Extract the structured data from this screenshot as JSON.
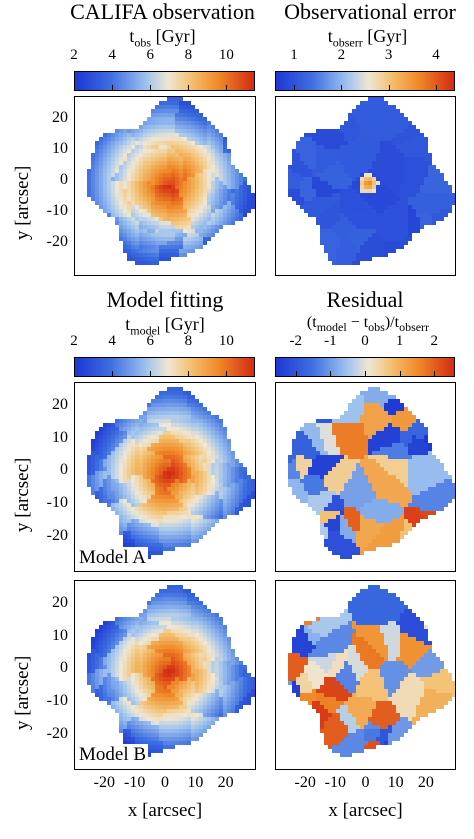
{
  "panels": {
    "obs": {
      "title": "CALIFA observation",
      "cb_label_main": "t",
      "cb_label_sub": "obs",
      "cb_label_unit": "[Gyr]",
      "cb_ticks": [
        "2",
        "4",
        "6",
        "8",
        "10"
      ]
    },
    "err": {
      "title": "Observational error",
      "cb_label_main": "t",
      "cb_label_sub": "obserr",
      "cb_label_unit": "[Gyr]",
      "cb_ticks": [
        "1",
        "2",
        "3",
        "4"
      ]
    },
    "model": {
      "title": "Model fitting",
      "cb_label_main": "t",
      "cb_label_sub": "model",
      "cb_label_unit": "[Gyr]",
      "cb_ticks": [
        "2",
        "4",
        "6",
        "8",
        "10"
      ]
    },
    "resid": {
      "title": "Residual",
      "cb_label": "(t",
      "cb_label_sub1": "model",
      "cb_label_mid": " − t",
      "cb_label_sub2": "obs",
      "cb_label_end": ")/t",
      "cb_label_sub3": "obserr",
      "cb_ticks": [
        "-2",
        "-1",
        "0",
        "1",
        "2"
      ]
    }
  },
  "axes": {
    "ylabel": "y [arcsec]",
    "xlabel": "x [arcsec]",
    "y_ticks": [
      "20",
      "10",
      "0",
      "-10",
      "-20"
    ],
    "x_ticks": [
      "-20",
      "-10",
      "0",
      "10",
      "20"
    ]
  },
  "tags": {
    "model_a": "Model A",
    "model_b": "Model B"
  },
  "colors": {
    "cmap_blue": "#1f3fd6",
    "cmap_lightblue": "#9fc3ee",
    "cmap_cream": "#f5e6c8",
    "cmap_orange": "#f0a030",
    "cmap_red": "#cc1a10"
  }
}
